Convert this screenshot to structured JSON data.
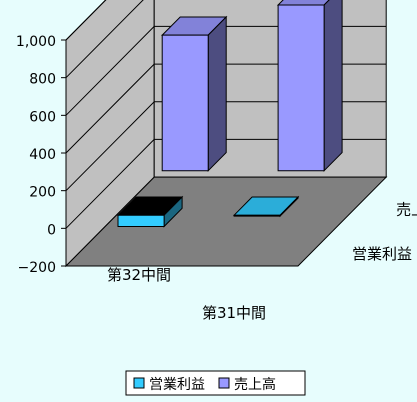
{
  "chart_data": {
    "type": "bar",
    "three_d": true,
    "categories": [
      "第32中間",
      "第31中間"
    ],
    "series": [
      {
        "name": "営業利益",
        "values": [
          -60,
          -5
        ],
        "color": "#33ccff"
      },
      {
        "name": "売上高",
        "values": [
          720,
          880
        ],
        "color": "#9999ff"
      }
    ],
    "yticks": [
      "1,000",
      "800",
      "600",
      "400",
      "200",
      "0",
      "−200"
    ],
    "ylim": [
      -200,
      1000
    ],
    "grid": true,
    "legend_position": "bottom",
    "colors": {
      "background": "#e7fdfd",
      "wall": "#c0c0c0",
      "floor": "#808080",
      "top_dark": "#000000"
    }
  }
}
